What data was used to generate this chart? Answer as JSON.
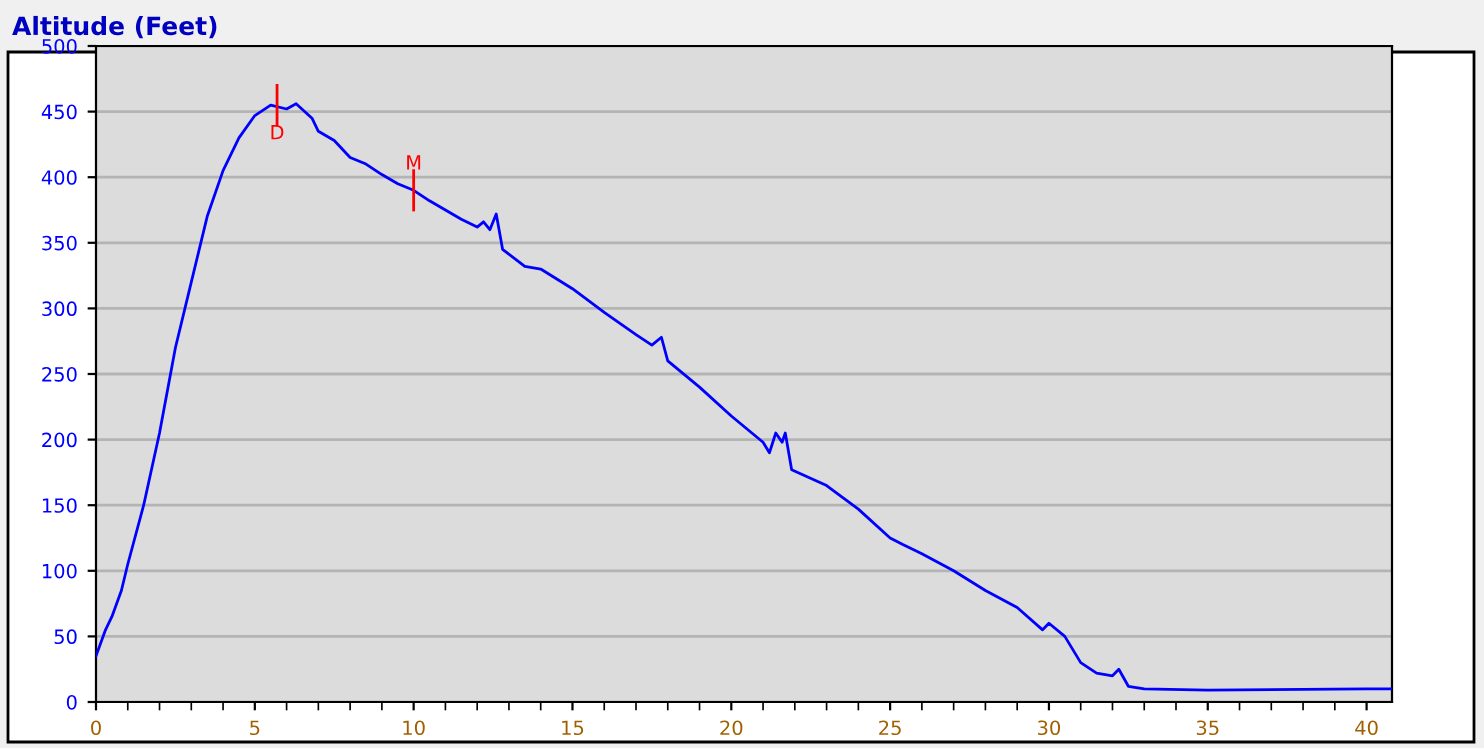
{
  "chart_data": {
    "type": "line",
    "title": "Altitude (Feet)",
    "series": [
      {
        "color": "#0000ff",
        "x": [
          0,
          0.3,
          0.5,
          0.8,
          1,
          1.5,
          2,
          2.5,
          3,
          3.5,
          4,
          4.5,
          5,
          5.5,
          6,
          6.3,
          6.8,
          7,
          7.5,
          8,
          8.5,
          9,
          9.5,
          10,
          10.5,
          11,
          11.5,
          12,
          12.2,
          12.4,
          12.6,
          12.8,
          13.5,
          14,
          15,
          16,
          17,
          17.5,
          17.8,
          18,
          19,
          20,
          21,
          21.2,
          21.4,
          21.6,
          21.7,
          21.9,
          23,
          24,
          25,
          25.4,
          26,
          27,
          28,
          29,
          29.8,
          30,
          30.5,
          31,
          31.5,
          32,
          32.2,
          32.5,
          33,
          35,
          40,
          40.8
        ],
        "values": [
          35,
          55,
          65,
          85,
          105,
          150,
          205,
          270,
          320,
          370,
          405,
          430,
          447,
          455,
          452,
          456,
          445,
          435,
          428,
          415,
          410,
          402,
          395,
          390,
          382,
          375,
          368,
          362,
          366,
          360,
          372,
          345,
          332,
          330,
          315,
          297,
          280,
          272,
          278,
          260,
          240,
          218,
          198,
          190,
          205,
          198,
          205,
          177,
          165,
          147,
          125,
          120,
          113,
          100,
          85,
          72,
          55,
          60,
          50,
          30,
          22,
          20,
          25,
          12,
          10,
          9,
          10,
          10
        ]
      }
    ],
    "annotations": [
      {
        "text": "D",
        "x": 5.7,
        "y": 455
      },
      {
        "text": "M",
        "x": 10,
        "y": 390
      }
    ],
    "xlim": [
      0,
      40.8
    ],
    "xticks": [
      0,
      5,
      10,
      15,
      20,
      25,
      30,
      35,
      40
    ],
    "ylim": [
      0,
      500
    ],
    "yticks": [
      0,
      50,
      100,
      150,
      200,
      250,
      300,
      350,
      400,
      450,
      500
    ],
    "grid": "y",
    "marker": "none",
    "line_style": "solid"
  }
}
